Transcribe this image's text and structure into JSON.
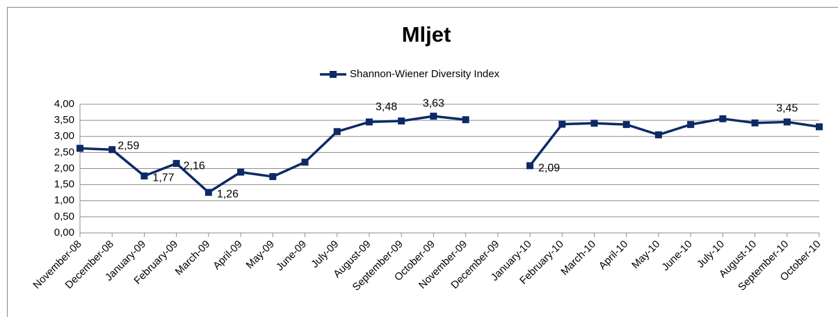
{
  "chart_data": {
    "type": "line",
    "title": "Mljet",
    "categories": [
      "November-08",
      "December-08",
      "January-09",
      "February-09",
      "March-09",
      "April-09",
      "May-09",
      "June-09",
      "July-09",
      "August-09",
      "September-09",
      "October-09",
      "November-09",
      "December-09",
      "January-10",
      "February-10",
      "March-10",
      "April-10",
      "May-10",
      "June-10",
      "July-10",
      "August-10",
      "September-10",
      "October-10"
    ],
    "series": [
      {
        "name": "Shannon-Wiener Diversity Index",
        "color": "#0d2a66",
        "values": [
          2.63,
          2.59,
          1.77,
          2.16,
          1.26,
          1.89,
          1.75,
          2.2,
          3.15,
          3.45,
          3.48,
          3.63,
          3.52,
          null,
          2.09,
          3.38,
          3.41,
          3.37,
          3.05,
          3.37,
          3.55,
          3.42,
          3.45,
          3.3
        ],
        "value_labels": [
          null,
          "2,59",
          "1,77",
          "2,16",
          "1,26",
          null,
          null,
          null,
          null,
          null,
          "3,48",
          "3,63",
          null,
          null,
          "2,09",
          null,
          null,
          null,
          null,
          null,
          null,
          null,
          "3,45",
          null
        ]
      }
    ],
    "ylim": [
      0,
      4
    ],
    "yticks": [
      {
        "value": 0,
        "label": "0,00"
      },
      {
        "value": 0.5,
        "label": "0,50"
      },
      {
        "value": 1,
        "label": "1,00"
      },
      {
        "value": 1.5,
        "label": "1,50"
      },
      {
        "value": 2,
        "label": "2,00"
      },
      {
        "value": 2.5,
        "label": "2,50"
      },
      {
        "value": 3,
        "label": "3,00"
      },
      {
        "value": 3.5,
        "label": "3,50"
      },
      {
        "value": 4,
        "label": "4,00"
      }
    ],
    "grid": true,
    "legend": "top"
  }
}
